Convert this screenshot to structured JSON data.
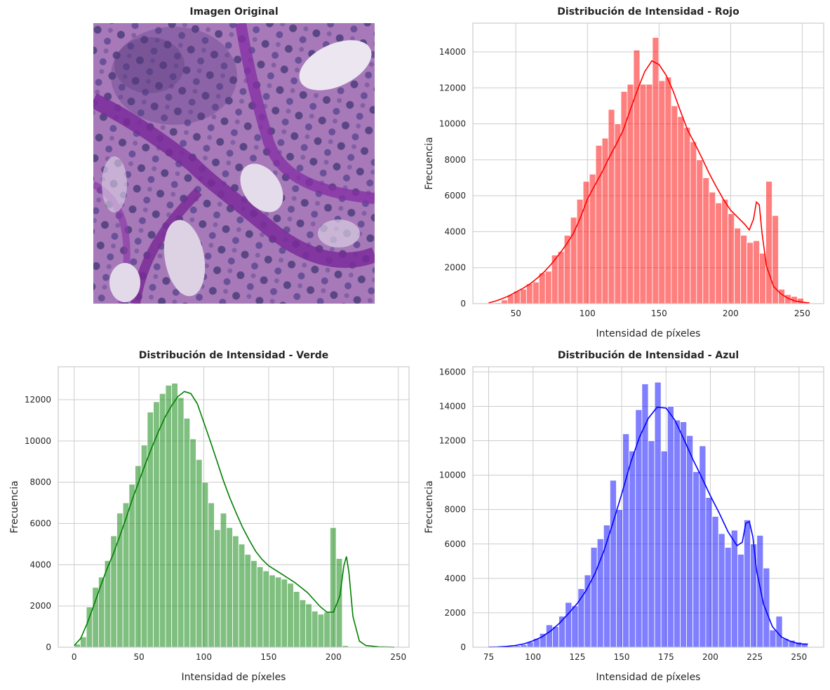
{
  "image_panel": {
    "title": "Imagen Original"
  },
  "chart_data": [
    {
      "id": "red",
      "type": "bar",
      "title": "Distribución de Intensidad - Rojo",
      "xlabel": "Intensidad de píxeles",
      "ylabel": "Frecuencia",
      "color": "#ff0000",
      "xlim": [
        20,
        265
      ],
      "ylim": [
        0,
        15600
      ],
      "xticks": [
        50,
        100,
        150,
        200,
        250
      ],
      "yticks": [
        0,
        2000,
        4000,
        6000,
        8000,
        10000,
        12000,
        14000
      ],
      "bin_start": 31.0,
      "bin_width": 4.4,
      "values": [
        0,
        50,
        200,
        500,
        700,
        800,
        1100,
        1200,
        1700,
        1800,
        2700,
        2900,
        3800,
        4800,
        5800,
        6800,
        7200,
        8800,
        9200,
        10800,
        10000,
        11800,
        12200,
        14100,
        12200,
        12200,
        14800,
        12400,
        12600,
        11000,
        10400,
        9800,
        9000,
        8000,
        7000,
        6200,
        5600,
        5800,
        5000,
        4200,
        3800,
        3400,
        3500,
        2800,
        6800,
        4900,
        800,
        500,
        400,
        300,
        100,
        0
      ],
      "kde": [
        [
          31,
          40
        ],
        [
          35,
          120
        ],
        [
          40,
          260
        ],
        [
          45,
          420
        ],
        [
          50,
          640
        ],
        [
          55,
          850
        ],
        [
          60,
          1100
        ],
        [
          65,
          1420
        ],
        [
          70,
          1780
        ],
        [
          75,
          2220
        ],
        [
          80,
          2720
        ],
        [
          85,
          3260
        ],
        [
          90,
          3880
        ],
        [
          95,
          4760
        ],
        [
          100,
          5820
        ],
        [
          105,
          6560
        ],
        [
          110,
          7280
        ],
        [
          115,
          8100
        ],
        [
          120,
          8850
        ],
        [
          125,
          9650
        ],
        [
          130,
          10800
        ],
        [
          135,
          11900
        ],
        [
          140,
          12900
        ],
        [
          145,
          13500
        ],
        [
          150,
          13300
        ],
        [
          155,
          12700
        ],
        [
          160,
          11800
        ],
        [
          165,
          10700
        ],
        [
          170,
          9650
        ],
        [
          175,
          8900
        ],
        [
          180,
          8100
        ],
        [
          185,
          7250
        ],
        [
          190,
          6500
        ],
        [
          195,
          5800
        ],
        [
          200,
          5200
        ],
        [
          205,
          4800
        ],
        [
          210,
          4400
        ],
        [
          213,
          4100
        ],
        [
          216,
          4700
        ],
        [
          218,
          5650
        ],
        [
          220,
          5500
        ],
        [
          222,
          3900
        ],
        [
          225,
          2100
        ],
        [
          230,
          950
        ],
        [
          235,
          550
        ],
        [
          240,
          300
        ],
        [
          245,
          150
        ],
        [
          250,
          80
        ],
        [
          255,
          40
        ]
      ]
    },
    {
      "id": "green",
      "type": "bar",
      "title": "Distribución de Intensidad - Verde",
      "xlabel": "Intensidad de píxeles",
      "ylabel": "Frecuencia",
      "color": "#008000",
      "xlim": [
        -12.3,
        258.3
      ],
      "ylim": [
        0,
        13600
      ],
      "xticks": [
        0,
        50,
        100,
        150,
        200,
        250
      ],
      "yticks": [
        0,
        2000,
        4000,
        6000,
        8000,
        10000,
        12000
      ],
      "bin_start": 0,
      "bin_width": 4.7,
      "values": [
        150,
        500,
        1950,
        2900,
        3400,
        4200,
        5400,
        6500,
        7000,
        7900,
        8800,
        9800,
        11400,
        11900,
        12300,
        12700,
        12800,
        12100,
        11100,
        10100,
        9100,
        8000,
        7000,
        5700,
        6500,
        5800,
        5400,
        5000,
        4500,
        4200,
        3900,
        3700,
        3500,
        3400,
        3300,
        3100,
        2700,
        2300,
        2100,
        1750,
        1600,
        1700,
        5800,
        4300,
        80,
        0,
        0,
        0,
        0,
        0,
        0,
        0,
        0
      ],
      "kde": [
        [
          0,
          80
        ],
        [
          5,
          420
        ],
        [
          10,
          1150
        ],
        [
          15,
          2000
        ],
        [
          20,
          2900
        ],
        [
          25,
          3750
        ],
        [
          30,
          4500
        ],
        [
          35,
          5350
        ],
        [
          40,
          6250
        ],
        [
          45,
          7200
        ],
        [
          50,
          8050
        ],
        [
          55,
          8900
        ],
        [
          60,
          9700
        ],
        [
          65,
          10450
        ],
        [
          70,
          11150
        ],
        [
          75,
          11700
        ],
        [
          80,
          12150
        ],
        [
          85,
          12400
        ],
        [
          90,
          12300
        ],
        [
          95,
          11800
        ],
        [
          100,
          10900
        ],
        [
          105,
          10000
        ],
        [
          110,
          9050
        ],
        [
          115,
          8100
        ],
        [
          120,
          7250
        ],
        [
          125,
          6500
        ],
        [
          130,
          5800
        ],
        [
          135,
          5200
        ],
        [
          140,
          4650
        ],
        [
          145,
          4250
        ],
        [
          150,
          3950
        ],
        [
          155,
          3750
        ],
        [
          160,
          3550
        ],
        [
          165,
          3350
        ],
        [
          170,
          3150
        ],
        [
          175,
          2900
        ],
        [
          180,
          2650
        ],
        [
          185,
          2300
        ],
        [
          190,
          1950
        ],
        [
          195,
          1700
        ],
        [
          200,
          1700
        ],
        [
          205,
          2500
        ],
        [
          208,
          3950
        ],
        [
          210,
          4400
        ],
        [
          212,
          3600
        ],
        [
          215,
          1500
        ],
        [
          220,
          300
        ],
        [
          225,
          80
        ],
        [
          235,
          20
        ],
        [
          247,
          5
        ]
      ]
    },
    {
      "id": "blue",
      "type": "bar",
      "title": "Distribución de Intensidad - Azul",
      "xlabel": "Intensidad de píxeles",
      "ylabel": "Frecuencia",
      "color": "#0000ff",
      "xlim": [
        66.1,
        263.9
      ],
      "ylim": [
        0,
        16300
      ],
      "xticks": [
        75,
        100,
        125,
        150,
        175,
        200,
        225,
        250
      ],
      "yticks": [
        0,
        2000,
        4000,
        6000,
        8000,
        10000,
        12000,
        14000,
        16000
      ],
      "bin_start": 75,
      "bin_width": 3.6,
      "values": [
        20,
        30,
        40,
        60,
        90,
        150,
        300,
        500,
        800,
        1300,
        1200,
        1800,
        2600,
        2400,
        3400,
        4200,
        5800,
        6300,
        7100,
        9700,
        8000,
        12400,
        11400,
        13800,
        15300,
        12000,
        15400,
        11400,
        14000,
        13200,
        13100,
        12300,
        10200,
        11700,
        8700,
        7600,
        6600,
        5800,
        6800,
        5400,
        7400,
        6000,
        6500,
        4600,
        1000,
        1800,
        500,
        400,
        300,
        200
      ],
      "kde": [
        [
          75,
          10
        ],
        [
          80,
          20
        ],
        [
          85,
          50
        ],
        [
          90,
          100
        ],
        [
          95,
          200
        ],
        [
          100,
          370
        ],
        [
          105,
          600
        ],
        [
          110,
          950
        ],
        [
          115,
          1400
        ],
        [
          120,
          1950
        ],
        [
          125,
          2550
        ],
        [
          130,
          3300
        ],
        [
          135,
          4300
        ],
        [
          140,
          5600
        ],
        [
          145,
          7200
        ],
        [
          150,
          8900
        ],
        [
          155,
          10700
        ],
        [
          160,
          12200
        ],
        [
          165,
          13300
        ],
        [
          170,
          13950
        ],
        [
          175,
          13900
        ],
        [
          180,
          13200
        ],
        [
          185,
          12100
        ],
        [
          190,
          10950
        ],
        [
          195,
          9900
        ],
        [
          200,
          8800
        ],
        [
          205,
          7800
        ],
        [
          210,
          6700
        ],
        [
          215,
          5900
        ],
        [
          218,
          6100
        ],
        [
          220,
          7200
        ],
        [
          222,
          7300
        ],
        [
          224,
          6400
        ],
        [
          226,
          4500
        ],
        [
          230,
          2500
        ],
        [
          235,
          1200
        ],
        [
          240,
          600
        ],
        [
          245,
          350
        ],
        [
          250,
          200
        ],
        [
          255,
          180
        ]
      ]
    }
  ]
}
